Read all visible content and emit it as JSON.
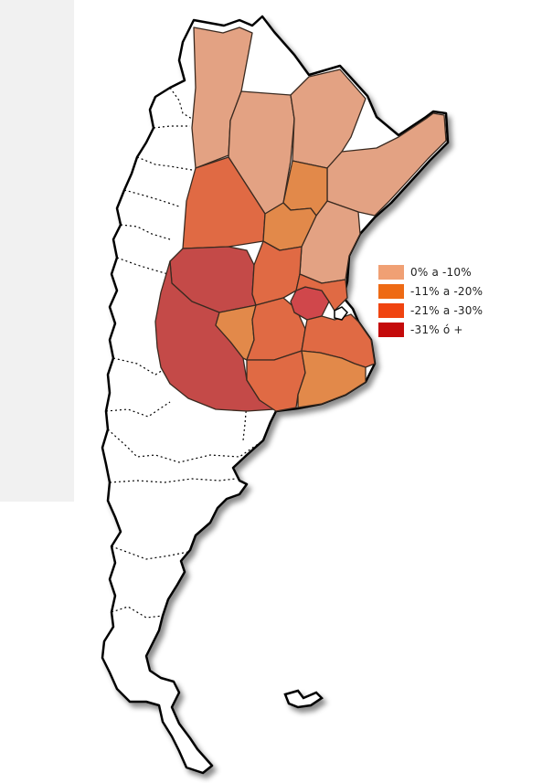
{
  "legend": {
    "items": [
      {
        "label": "0% a -10%",
        "color": "#f0a074"
      },
      {
        "label": "-11% a -20%",
        "color": "#ee6a14"
      },
      {
        "label": "-21% a -30%",
        "color": "#f04410"
      },
      {
        "label": "-31% ó +",
        "color": "#c40a0a"
      }
    ]
  },
  "map": {
    "region_colors": {
      "pale": "#e3a283",
      "light_orange": "#e2894a",
      "medium": "#e06a44",
      "dark": "#c44a48",
      "darkest": "#d0474b"
    },
    "country_fill": "#ffffff",
    "outline_color": "#000000"
  }
}
